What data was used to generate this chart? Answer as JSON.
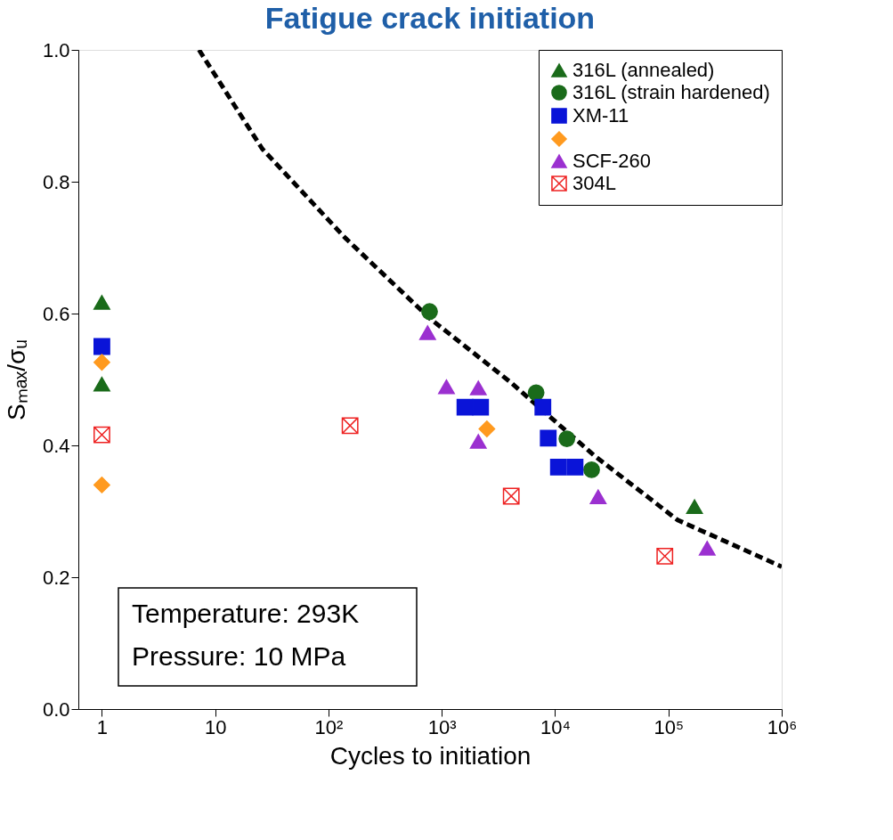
{
  "chart_data": {
    "type": "scatter",
    "title": "Fatigue crack initiation",
    "xlabel": "Cycles to initiation",
    "ylabel": "Sₘₐₓ/σᵤ",
    "log": "x",
    "grid": false,
    "legend": "top right",
    "xlim": [
      0.62,
      1000000
    ],
    "ylim": [
      0,
      1.0
    ],
    "xticks": [
      1,
      10,
      {
        "value": 100,
        "label": "10²"
      },
      {
        "value": 1000,
        "label": "10³"
      },
      {
        "value": 10000,
        "label": "10⁴"
      },
      {
        "value": 100000,
        "label": "10⁵"
      },
      {
        "value": 1000000,
        "label": "10⁶"
      }
    ],
    "yticks": [
      {
        "value": 0,
        "label": "0.0"
      },
      0.2,
      0.4,
      0.6,
      0.8,
      {
        "value": 1,
        "label": "1.0"
      }
    ],
    "annotations": [
      "Temperature: 293K",
      "Pressure: 10 MPa"
    ],
    "series": [
      {
        "name": "316L (annealed)",
        "color": "#1a6b1a",
        "marker": "triangle",
        "x": [
          1,
          1,
          170000
        ],
        "values": [
          0.617,
          0.493,
          0.307
        ]
      },
      {
        "name": "316L (strain hardened)",
        "color": "#1a6b1a",
        "marker": "circle",
        "x": [
          780,
          6800,
          12700,
          21000
        ],
        "values": [
          0.603,
          0.48,
          0.41,
          0.363
        ]
      },
      {
        "name": "XM-11",
        "color": "#0a14d8",
        "marker": "square",
        "x": [
          1,
          1600,
          2200,
          7800,
          8700,
          10700,
          15000
        ],
        "values": [
          0.55,
          0.458,
          0.458,
          0.458,
          0.411,
          0.367,
          0.367
        ]
      },
      {
        "color": "#ff9a1f",
        "marker": "diamond",
        "x": [
          1,
          1,
          2500
        ],
        "values": [
          0.526,
          0.34,
          0.425
        ]
      },
      {
        "name": "SCF-260",
        "color": "#9b30d0",
        "marker": "triangle",
        "x": [
          750,
          1100,
          2100,
          2100,
          24000,
          220000
        ],
        "values": [
          0.571,
          0.489,
          0.487,
          0.406,
          0.322,
          0.244
        ]
      },
      {
        "name": "304L",
        "color": "#ee2222",
        "marker": "cross",
        "x": [
          1,
          155,
          4100,
          93000
        ],
        "values": [
          0.416,
          0.43,
          0.323,
          0.232
        ]
      },
      {
        "type": "line",
        "color": "#000000",
        "line_style": "dashed",
        "x": [
          7.2,
          26,
          140,
          780,
          4100,
          22000,
          120000,
          1000000
        ],
        "values": [
          1.0,
          0.85,
          0.715,
          0.593,
          0.495,
          0.385,
          0.287,
          0.216
        ]
      }
    ]
  }
}
